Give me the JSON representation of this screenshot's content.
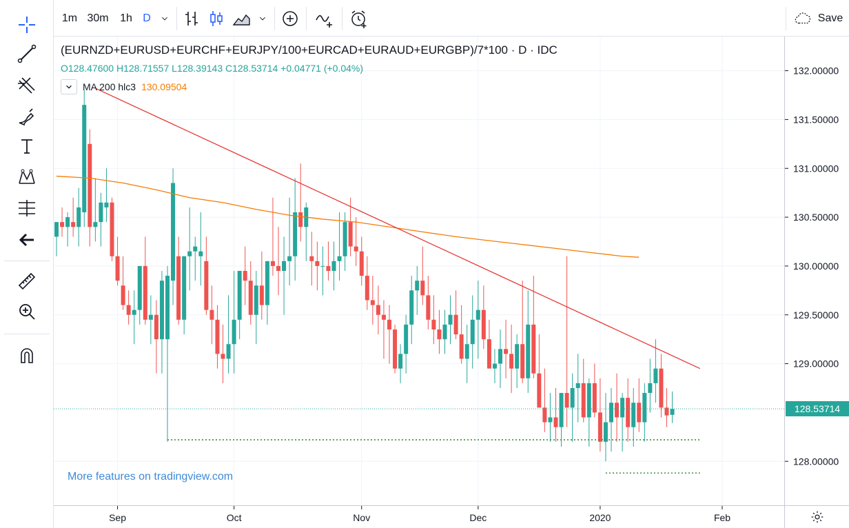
{
  "toolbar": {
    "intervals": [
      "1m",
      "30m",
      "1h",
      "D"
    ],
    "active_interval": "D",
    "save_label": "Save"
  },
  "legend": {
    "title": "(EURNZD+EURUSD+EURCHF+EURJPY/100+EURCAD+EURAUD+EURGBP)/7*100 · D · IDC",
    "ohlc": "O128.47600 H128.71557 L128.39143 C128.53714 +0.04771 (+0.04%)",
    "ma_label": "MA 200 hlc3",
    "ma_value": "130.09504"
  },
  "watermark": "More features on tradingview.com",
  "colors": {
    "up": "#26a69a",
    "down": "#ef5350",
    "ma": "#f57c00",
    "trendline": "#e53935",
    "support": "#388e3c",
    "last_price": "#26a69a",
    "watermark": "#3f8ad8"
  },
  "chart_data": {
    "type": "candlestick",
    "symbol": "(EURNZD+EURUSD+EURCHF+EURJPY/100+EURCAD+EURAUD+EURGBP)/7*100",
    "interval": "D",
    "source": "IDC",
    "y_ticks": [
      "132.00000",
      "131.50000",
      "131.00000",
      "130.50000",
      "130.00000",
      "129.50000",
      "129.00000",
      "128.00000"
    ],
    "ylim": [
      127.55,
      132.35
    ],
    "x_ticks": [
      {
        "label": "Sep",
        "index": 11
      },
      {
        "label": "Oct",
        "index": 32
      },
      {
        "label": "Nov",
        "index": 55
      },
      {
        "label": "Dec",
        "index": 76
      },
      {
        "label": "2020",
        "index": 98
      },
      {
        "label": "Feb",
        "index": 120
      }
    ],
    "x_count": 126,
    "last_price": "128.53714",
    "candles": [
      [
        130.3,
        130.45,
        130.1,
        130.45
      ],
      [
        130.45,
        130.6,
        130.3,
        130.4
      ],
      [
        130.4,
        130.55,
        130.2,
        130.5
      ],
      [
        130.45,
        130.7,
        130.3,
        130.4
      ],
      [
        130.4,
        130.8,
        130.2,
        130.6
      ],
      [
        130.55,
        131.8,
        130.4,
        131.65
      ],
      [
        131.25,
        131.4,
        130.2,
        130.4
      ],
      [
        130.4,
        130.9,
        130.25,
        130.45
      ],
      [
        130.45,
        130.75,
        130.2,
        130.65
      ],
      [
        130.6,
        131.0,
        130.45,
        130.65
      ],
      [
        130.65,
        130.7,
        130.05,
        130.1
      ],
      [
        130.1,
        130.3,
        129.8,
        129.85
      ],
      [
        129.8,
        130.1,
        129.55,
        129.6
      ],
      [
        129.6,
        129.75,
        129.4,
        129.5
      ],
      [
        129.5,
        129.75,
        129.2,
        129.55
      ],
      [
        129.55,
        130.0,
        129.4,
        130.0
      ],
      [
        130.0,
        130.3,
        129.4,
        129.45
      ],
      [
        129.45,
        129.7,
        129.2,
        129.5
      ],
      [
        129.5,
        129.65,
        128.9,
        129.25
      ],
      [
        129.25,
        129.95,
        128.9,
        129.85
      ],
      [
        129.25,
        130.0,
        128.2,
        129.9
      ],
      [
        129.85,
        131.0,
        129.6,
        130.85
      ],
      [
        130.1,
        130.3,
        129.4,
        129.45
      ],
      [
        129.45,
        130.1,
        129.3,
        130.1
      ],
      [
        130.1,
        130.6,
        129.75,
        130.15
      ],
      [
        130.15,
        130.3,
        129.85,
        130.2
      ],
      [
        130.1,
        130.55,
        129.8,
        130.15
      ],
      [
        130.05,
        130.3,
        129.5,
        129.55
      ],
      [
        129.55,
        129.8,
        129.2,
        129.45
      ],
      [
        129.45,
        129.6,
        128.95,
        129.1
      ],
      [
        129.1,
        129.4,
        128.8,
        129.05
      ],
      [
        129.05,
        129.7,
        128.9,
        129.2
      ],
      [
        129.2,
        129.95,
        128.9,
        129.45
      ],
      [
        129.45,
        129.95,
        129.25,
        129.95
      ],
      [
        129.95,
        130.2,
        129.6,
        129.85
      ],
      [
        129.85,
        130.05,
        129.4,
        129.5
      ],
      [
        129.5,
        129.95,
        129.2,
        129.8
      ],
      [
        129.8,
        130.15,
        129.45,
        129.6
      ],
      [
        129.6,
        130.05,
        129.4,
        130.05
      ],
      [
        130.05,
        130.7,
        129.9,
        130.0
      ],
      [
        130.0,
        130.4,
        129.7,
        129.95
      ],
      [
        129.95,
        130.3,
        129.5,
        130.05
      ],
      [
        130.05,
        130.7,
        129.8,
        130.1
      ],
      [
        130.1,
        130.9,
        129.85,
        130.55
      ],
      [
        130.55,
        131.05,
        130.25,
        130.4
      ],
      [
        130.4,
        130.65,
        130.05,
        130.6
      ],
      [
        130.1,
        130.35,
        129.8,
        130.05
      ],
      [
        130.05,
        130.25,
        129.75,
        130.0
      ],
      [
        130.0,
        130.2,
        129.7,
        130.0
      ],
      [
        130.0,
        130.25,
        129.85,
        129.95
      ],
      [
        129.95,
        130.25,
        129.75,
        130.05
      ],
      [
        130.05,
        130.55,
        129.85,
        130.1
      ],
      [
        130.1,
        130.55,
        129.95,
        130.45
      ],
      [
        130.45,
        130.7,
        130.1,
        130.2
      ],
      [
        130.2,
        130.5,
        130.0,
        130.15
      ],
      [
        130.15,
        130.3,
        129.8,
        129.9
      ],
      [
        129.9,
        130.1,
        129.55,
        129.65
      ],
      [
        129.65,
        129.9,
        129.4,
        129.6
      ],
      [
        129.6,
        129.8,
        129.3,
        129.5
      ],
      [
        129.5,
        129.65,
        129.05,
        129.45
      ],
      [
        129.45,
        129.6,
        129.0,
        129.35
      ],
      [
        129.35,
        129.4,
        128.9,
        128.95
      ],
      [
        128.95,
        129.2,
        128.8,
        129.1
      ],
      [
        129.1,
        129.5,
        128.9,
        129.4
      ],
      [
        129.4,
        129.9,
        129.2,
        129.75
      ],
      [
        129.75,
        130.0,
        129.5,
        129.85
      ],
      [
        129.85,
        130.2,
        129.6,
        129.7
      ],
      [
        129.7,
        129.9,
        129.35,
        129.45
      ],
      [
        129.45,
        129.7,
        129.2,
        129.35
      ],
      [
        129.35,
        129.55,
        129.1,
        129.25
      ],
      [
        129.25,
        129.55,
        129.1,
        129.4
      ],
      [
        129.4,
        129.7,
        129.2,
        129.5
      ],
      [
        129.5,
        129.75,
        129.25,
        129.3
      ],
      [
        129.3,
        129.6,
        129.0,
        129.05
      ],
      [
        129.05,
        129.4,
        128.8,
        129.2
      ],
      [
        129.2,
        129.7,
        128.95,
        129.45
      ],
      [
        129.45,
        129.85,
        129.05,
        129.55
      ],
      [
        129.55,
        129.8,
        129.15,
        129.25
      ],
      [
        129.25,
        129.45,
        128.95,
        128.95
      ],
      [
        128.95,
        129.15,
        128.8,
        129.0
      ],
      [
        129.0,
        129.35,
        128.75,
        129.15
      ],
      [
        129.15,
        129.45,
        128.85,
        129.1
      ],
      [
        129.1,
        129.4,
        128.7,
        128.95
      ],
      [
        128.95,
        129.3,
        128.75,
        129.2
      ],
      [
        129.2,
        129.85,
        128.8,
        128.85
      ],
      [
        128.85,
        129.75,
        128.7,
        129.4
      ],
      [
        129.4,
        129.9,
        128.85,
        128.9
      ],
      [
        128.9,
        129.3,
        128.55,
        128.55
      ],
      [
        128.55,
        128.95,
        128.3,
        128.4
      ],
      [
        128.4,
        128.7,
        128.2,
        128.45
      ],
      [
        128.45,
        128.75,
        128.2,
        128.35
      ],
      [
        128.35,
        128.7,
        128.15,
        128.7
      ],
      [
        128.7,
        130.1,
        128.35,
        128.55
      ],
      [
        128.55,
        128.9,
        128.2,
        128.75
      ],
      [
        128.75,
        129.1,
        128.4,
        128.8
      ],
      [
        128.8,
        129.05,
        128.4,
        128.45
      ],
      [
        128.45,
        128.85,
        128.15,
        128.8
      ],
      [
        128.8,
        129.0,
        128.45,
        128.5
      ],
      [
        128.5,
        128.85,
        128.1,
        128.2
      ],
      [
        128.2,
        128.7,
        128.0,
        128.4
      ],
      [
        128.4,
        128.75,
        128.1,
        128.6
      ],
      [
        128.6,
        128.9,
        128.2,
        128.45
      ],
      [
        128.45,
        128.7,
        128.1,
        128.65
      ],
      [
        128.65,
        128.85,
        128.2,
        128.35
      ],
      [
        128.35,
        128.75,
        128.15,
        128.6
      ],
      [
        128.6,
        128.85,
        128.3,
        128.4
      ],
      [
        128.4,
        128.8,
        128.2,
        128.7
      ],
      [
        128.7,
        129.05,
        128.5,
        128.8
      ],
      [
        128.8,
        129.25,
        128.6,
        128.95
      ],
      [
        128.95,
        129.1,
        128.45,
        128.55
      ],
      [
        128.55,
        128.75,
        128.35,
        128.47
      ],
      [
        128.476,
        128.71557,
        128.39143,
        128.53714
      ]
    ],
    "ma200": [
      [
        0,
        130.92
      ],
      [
        6,
        130.9
      ],
      [
        12,
        130.85
      ],
      [
        18,
        130.78
      ],
      [
        24,
        130.7
      ],
      [
        30,
        130.65
      ],
      [
        36,
        130.58
      ],
      [
        42,
        130.52
      ],
      [
        48,
        130.48
      ],
      [
        54,
        130.45
      ],
      [
        60,
        130.4
      ],
      [
        66,
        130.35
      ],
      [
        72,
        130.3
      ],
      [
        78,
        130.26
      ],
      [
        84,
        130.22
      ],
      [
        90,
        130.18
      ],
      [
        96,
        130.14
      ],
      [
        102,
        130.1
      ],
      [
        105,
        130.09
      ]
    ],
    "trendline": [
      [
        7,
        131.82
      ],
      [
        116,
        128.95
      ]
    ],
    "support_lines": [
      {
        "from": 20,
        "to": 116,
        "y": 128.22
      },
      {
        "from": 99,
        "to": 116,
        "y": 127.88
      }
    ]
  }
}
